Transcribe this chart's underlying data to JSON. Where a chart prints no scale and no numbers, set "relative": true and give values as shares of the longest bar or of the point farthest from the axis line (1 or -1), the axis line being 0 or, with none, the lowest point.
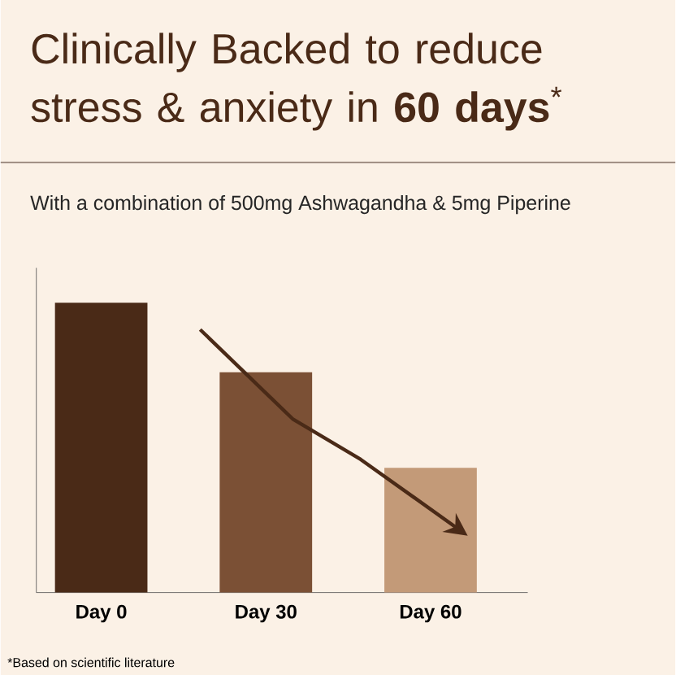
{
  "chart_data": {
    "type": "bar",
    "title": "Clinically Backed to reduce stress & anxiety in **60 days**$^{*}$",
    "subtitle": "With a combination of 500mg Ashwagandha & 5mg Piperine",
    "categories": [
      "Day 0",
      "Day 30",
      "Day 60"
    ],
    "values": [
      1,
      0.76,
      0.43
    ],
    "colors": [
      "#4a2a17",
      "#7b5035",
      "#c39a78"
    ],
    "relative": true,
    "annotations": [
      "*Based on scientific literature"
    ]
  }
}
